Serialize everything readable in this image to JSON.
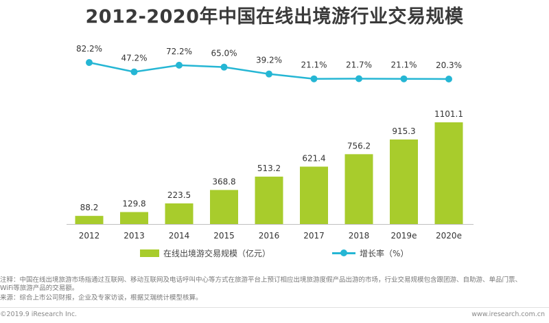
{
  "title": "2012-2020年中国在线出境游行业交易规模",
  "chart_data": {
    "type": "bar+line",
    "categories": [
      "2012",
      "2013",
      "2014",
      "2015",
      "2016",
      "2017",
      "2018",
      "2019e",
      "2020e"
    ],
    "bar_series": {
      "name": "在线出境游交易规模（亿元）",
      "values": [
        88.2,
        129.8,
        223.5,
        368.8,
        513.2,
        621.4,
        756.2,
        915.3,
        1101.1
      ],
      "labels": [
        "88.2",
        "129.8",
        "223.5",
        "368.8",
        "513.2",
        "621.4",
        "756.2",
        "915.3",
        "1101.1"
      ],
      "color": "#a8cc2c"
    },
    "line_series": {
      "name": "增长率（%）",
      "values": [
        82.2,
        47.2,
        72.2,
        65.0,
        39.2,
        21.1,
        21.7,
        21.1,
        20.3
      ],
      "labels": [
        "82.2%",
        "47.2%",
        "72.2%",
        "65.0%",
        "39.2%",
        "21.1%",
        "21.7%",
        "21.1%",
        "20.3%"
      ],
      "color": "#25b6d4"
    }
  },
  "notes": {
    "line1": "注释：中国在线出境旅游市场指通过互联网、移动互联网及电话呼叫中心等方式在旅游平台上预订相应出境旅游度假产品出游的市场，行业交易规模包含跟团游、自助游、单品门票、",
    "line2": "WiFi等旅游产品的交易额。",
    "line3": "来源：综合上市公司财报，企业及专家访谈，根据艾瑞统计模型核算。"
  },
  "footer": {
    "copyright": "©2019.9 iResearch Inc.",
    "website": "www.iresearch.com.cn"
  }
}
